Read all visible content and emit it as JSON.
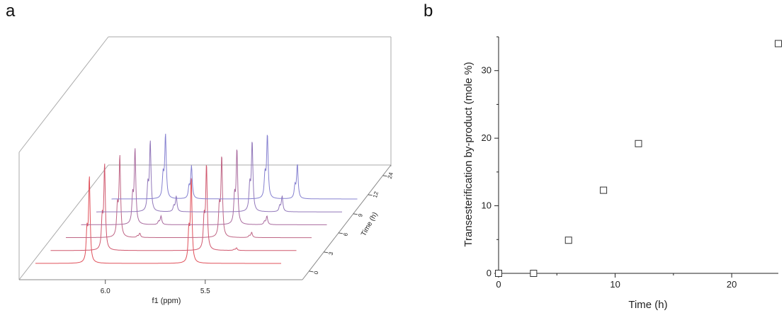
{
  "panels": {
    "a_label": "a",
    "b_label": "b"
  },
  "chart_data": [
    {
      "panel": "a",
      "type": "line",
      "style": "stacked 3D waterfall of NMR spectra",
      "xlabel": "f1 (ppm)",
      "xticks": [
        "6.0",
        "5.5"
      ],
      "xlim": [
        6.35,
        5.12
      ],
      "zlabel": "Time (h)",
      "zticks": [
        "0",
        "3",
        "6",
        "9",
        "12",
        "24"
      ],
      "series": [
        {
          "time": 0,
          "color": "#e0505a",
          "peaks": [
            {
              "ppm": 6.08,
              "h": 1.0
            },
            {
              "ppm": 5.57,
              "h": 1.0
            }
          ]
        },
        {
          "time": 3,
          "color": "#d0586e",
          "peaks": [
            {
              "ppm": 6.08,
              "h": 1.0
            },
            {
              "ppm": 5.57,
              "h": 1.0
            },
            {
              "ppm": 5.42,
              "h": 0.03
            }
          ]
        },
        {
          "time": 6,
          "color": "#bf6585",
          "peaks": [
            {
              "ppm": 6.08,
              "h": 0.95
            },
            {
              "ppm": 5.57,
              "h": 0.95
            },
            {
              "ppm": 5.42,
              "h": 0.06
            },
            {
              "ppm": 5.98,
              "h": 0.05
            }
          ]
        },
        {
          "time": 9,
          "color": "#a96a9e",
          "peaks": [
            {
              "ppm": 6.08,
              "h": 0.88
            },
            {
              "ppm": 5.57,
              "h": 0.88
            },
            {
              "ppm": 5.95,
              "h": 0.1
            },
            {
              "ppm": 5.42,
              "h": 0.1
            }
          ]
        },
        {
          "time": 12,
          "color": "#9278ba",
          "peaks": [
            {
              "ppm": 6.08,
              "h": 0.82
            },
            {
              "ppm": 5.57,
              "h": 0.82
            },
            {
              "ppm": 5.95,
              "h": 0.18
            },
            {
              "ppm": 5.42,
              "h": 0.18
            }
          ]
        },
        {
          "time": 24,
          "color": "#8580d0",
          "peaks": [
            {
              "ppm": 6.08,
              "h": 0.75
            },
            {
              "ppm": 5.57,
              "h": 0.75
            },
            {
              "ppm": 5.95,
              "h": 0.38
            },
            {
              "ppm": 5.42,
              "h": 0.4
            }
          ]
        }
      ]
    },
    {
      "panel": "b",
      "type": "scatter",
      "xlabel": "Time (h)",
      "ylabel": "Transesterification by-product (mole %)",
      "xlim": [
        0,
        24
      ],
      "ylim": [
        0,
        35
      ],
      "xticks": [
        0,
        10,
        20
      ],
      "yticks": [
        0,
        10,
        20,
        30
      ],
      "marker": "open square",
      "x": [
        0,
        3,
        6,
        9,
        12,
        24
      ],
      "y": [
        0,
        0,
        4.9,
        12.3,
        19.2,
        34
      ]
    }
  ]
}
